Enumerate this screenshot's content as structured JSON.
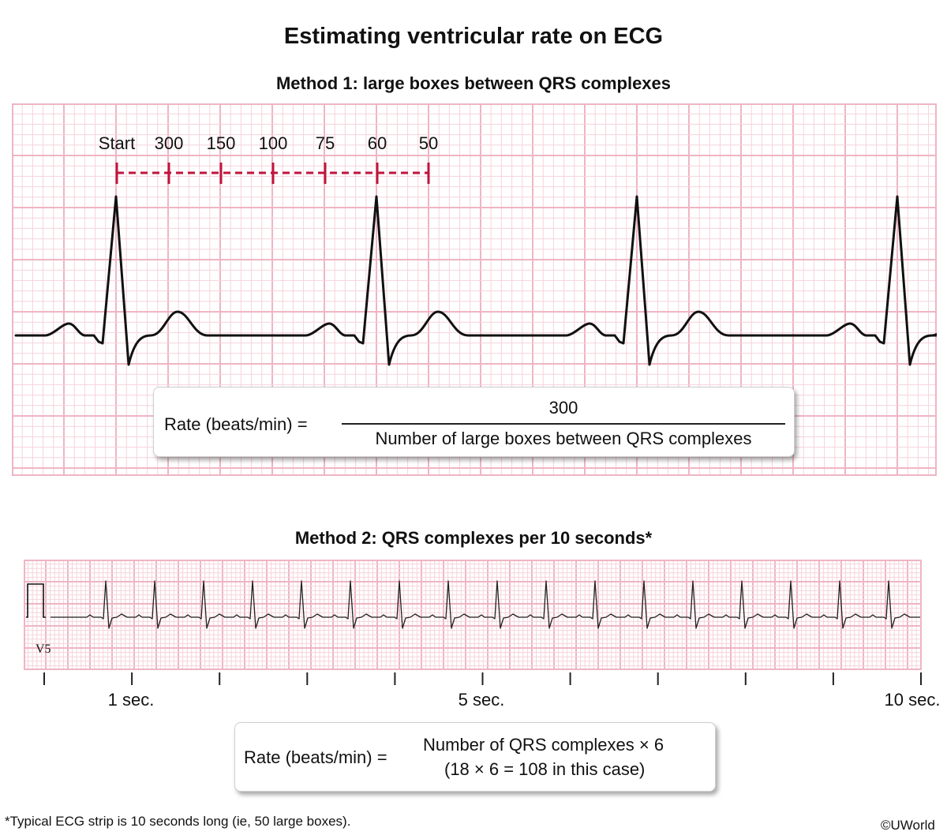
{
  "title": "Estimating ventricular rate on ECG",
  "method1": {
    "heading": "Method 1: large boxes between QRS complexes",
    "markers": [
      "Start",
      "300",
      "150",
      "100",
      "75",
      "60",
      "50"
    ],
    "formula": {
      "lhs": "Rate (beats/min) =",
      "numerator": "300",
      "denominator": "Number of large boxes between QRS complexes"
    }
  },
  "method2": {
    "heading": "Method 2: QRS complexes per 10 seconds*",
    "lead_label": "V5",
    "qrs_count": 18,
    "time_labels": [
      "1 sec.",
      "5 sec.",
      "10 sec."
    ],
    "formula": {
      "lhs": "Rate (beats/min) =",
      "line1": "Number of QRS complexes × 6",
      "line2": "(18 × 6 = 108 in this case)"
    }
  },
  "footnote": "*Typical ECG strip is 10 seconds long (ie, 50 large boxes).",
  "copyright": "©UWorld",
  "colors": {
    "grid_minor": "#f6d3dc",
    "grid_major": "#efb5c3",
    "marker": "#c0143c",
    "trace": "#111111"
  }
}
